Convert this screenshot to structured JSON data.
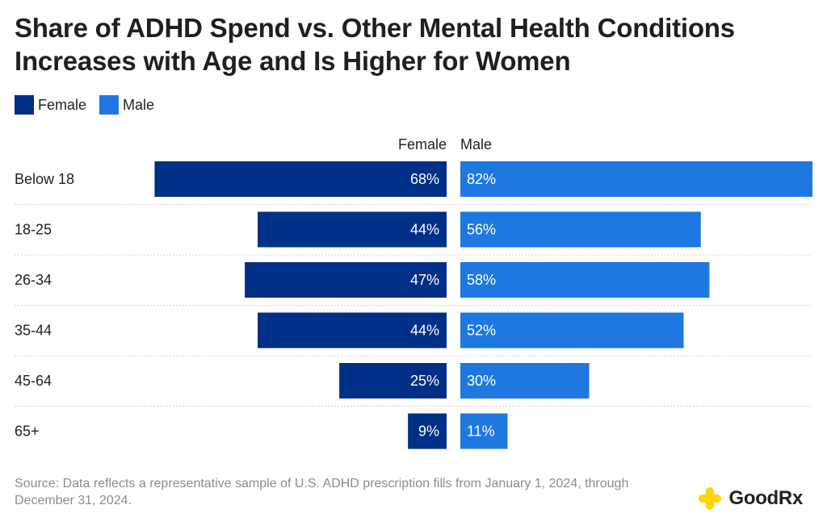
{
  "title": "Share of ADHD Spend vs. Other Mental Health Conditions Increases with Age and Is Higher for Women",
  "legend": {
    "female_label": "Female",
    "male_label": "Male"
  },
  "colors": {
    "female": "#002F87",
    "male": "#1E78E0",
    "label_text": "#ffffff",
    "divider": "#E3C9D6",
    "logo_yellow": "#FFD700"
  },
  "chart_data": {
    "type": "bar",
    "orientation": "horizontal-diverging",
    "title": "Share of ADHD Spend vs. Other Mental Health Conditions Increases with Age and Is Higher for Women",
    "categories": [
      "Below 18",
      "18-25",
      "26-34",
      "35-44",
      "45-64",
      "65+"
    ],
    "column_headers": {
      "left": "Female",
      "right": "Male"
    },
    "series": [
      {
        "name": "Female",
        "values": [
          68,
          44,
          47,
          44,
          25,
          9
        ],
        "labels": [
          "68%",
          "44%",
          "47%",
          "44%",
          "25%",
          "9%"
        ]
      },
      {
        "name": "Male",
        "values": [
          82,
          56,
          58,
          52,
          30,
          11
        ],
        "labels": [
          "82%",
          "56%",
          "58%",
          "52%",
          "30%",
          "11%"
        ]
      }
    ],
    "unit": "%",
    "xlim": [
      0,
      82
    ],
    "grid": false,
    "legend_position": "top-left"
  },
  "source": "Source: Data reflects a representative sample of U.S. ADHD prescription fills from January 1, 2024, through December 31, 2024.",
  "brand": {
    "name": "GoodRx"
  }
}
